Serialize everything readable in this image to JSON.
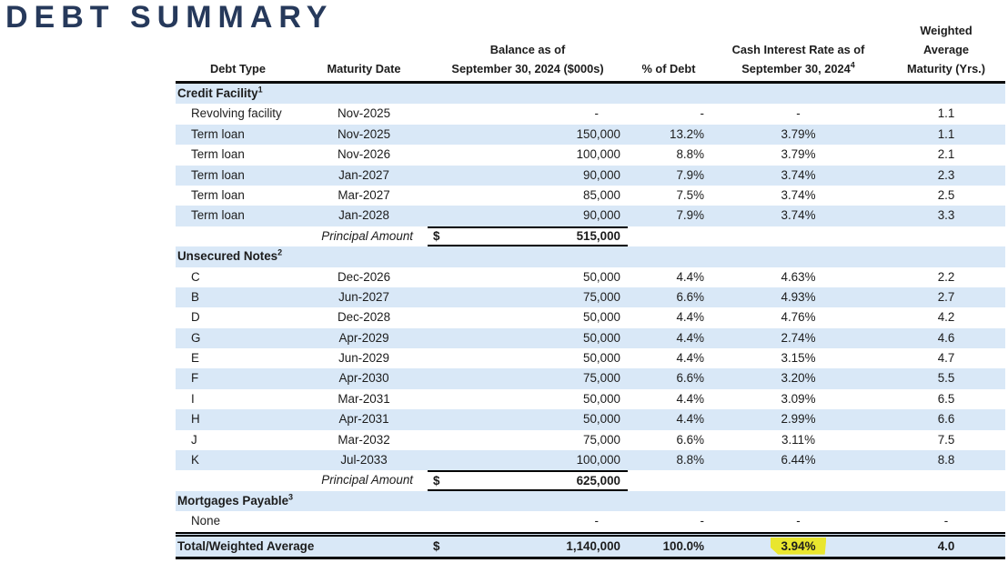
{
  "title": "DEBT SUMMARY",
  "colors": {
    "title_navy": "#26395b",
    "row_band_blue": "#d9e8f7",
    "highlight_yellow": "#e9e62e",
    "border_black": "#0c0c0c"
  },
  "table": {
    "columns": {
      "debt_type": "Debt Type",
      "maturity_date": "Maturity Date",
      "balance_line1": "Balance as of",
      "balance_line2": "September 30, 2024 ($000s)",
      "pct_of_debt": "% of Debt",
      "rate_line1": "Cash Interest Rate as of",
      "rate_line2": "September 30, 2024",
      "rate_sup": "4",
      "wam_line1": "Weighted",
      "wam_line2": "Average",
      "wam_line3": "Maturity (Yrs.)"
    },
    "rows": [
      {
        "type": "section",
        "label": "Credit Facility",
        "sup": "1"
      },
      {
        "type": "data",
        "label": "Revolving facility",
        "maturity": "Nov-2025",
        "balance": "-",
        "pct": "-",
        "rate": "-",
        "wam": "1.1"
      },
      {
        "type": "data",
        "label": "Term loan",
        "maturity": "Nov-2025",
        "balance": "150,000",
        "pct": "13.2%",
        "rate": "3.79%",
        "wam": "1.1"
      },
      {
        "type": "data",
        "label": "Term loan",
        "maturity": "Nov-2026",
        "balance": "100,000",
        "pct": "8.8%",
        "rate": "3.79%",
        "wam": "2.1"
      },
      {
        "type": "data",
        "label": "Term loan",
        "maturity": "Jan-2027",
        "balance": "90,000",
        "pct": "7.9%",
        "rate": "3.74%",
        "wam": "2.3"
      },
      {
        "type": "data",
        "label": "Term loan",
        "maturity": "Mar-2027",
        "balance": "85,000",
        "pct": "7.5%",
        "rate": "3.74%",
        "wam": "2.5"
      },
      {
        "type": "data",
        "label": "Term loan",
        "maturity": "Jan-2028",
        "balance": "90,000",
        "pct": "7.9%",
        "rate": "3.74%",
        "wam": "3.3"
      },
      {
        "type": "subtotal",
        "label": "Principal Amount",
        "currency": "$",
        "balance": "515,000"
      },
      {
        "type": "section",
        "label": "Unsecured Notes",
        "sup": "2"
      },
      {
        "type": "data",
        "label": "C",
        "maturity": "Dec-2026",
        "balance": "50,000",
        "pct": "4.4%",
        "rate": "4.63%",
        "wam": "2.2"
      },
      {
        "type": "data",
        "label": "B",
        "maturity": "Jun-2027",
        "balance": "75,000",
        "pct": "6.6%",
        "rate": "4.93%",
        "wam": "2.7"
      },
      {
        "type": "data",
        "label": "D",
        "maturity": "Dec-2028",
        "balance": "50,000",
        "pct": "4.4%",
        "rate": "4.76%",
        "wam": "4.2"
      },
      {
        "type": "data",
        "label": "G",
        "maturity": "Apr-2029",
        "balance": "50,000",
        "pct": "4.4%",
        "rate": "2.74%",
        "wam": "4.6"
      },
      {
        "type": "data",
        "label": "E",
        "maturity": "Jun-2029",
        "balance": "50,000",
        "pct": "4.4%",
        "rate": "3.15%",
        "wam": "4.7"
      },
      {
        "type": "data",
        "label": "F",
        "maturity": "Apr-2030",
        "balance": "75,000",
        "pct": "6.6%",
        "rate": "3.20%",
        "wam": "5.5"
      },
      {
        "type": "data",
        "label": "I",
        "maturity": "Mar-2031",
        "balance": "50,000",
        "pct": "4.4%",
        "rate": "3.09%",
        "wam": "6.5"
      },
      {
        "type": "data",
        "label": "H",
        "maturity": "Apr-2031",
        "balance": "50,000",
        "pct": "4.4%",
        "rate": "2.99%",
        "wam": "6.6"
      },
      {
        "type": "data",
        "label": "J",
        "maturity": "Mar-2032",
        "balance": "75,000",
        "pct": "6.6%",
        "rate": "3.11%",
        "wam": "7.5"
      },
      {
        "type": "data",
        "label": "K",
        "maturity": "Jul-2033",
        "balance": "100,000",
        "pct": "8.8%",
        "rate": "6.44%",
        "wam": "8.8"
      },
      {
        "type": "subtotal",
        "label": "Principal Amount",
        "currency": "$",
        "balance": "625,000"
      },
      {
        "type": "section",
        "label": "Mortgages Payable",
        "sup": "3"
      },
      {
        "type": "data",
        "label": "None",
        "maturity": "",
        "balance": "-",
        "pct": "-",
        "rate": "-",
        "wam": "-"
      },
      {
        "type": "total",
        "label": "Total/Weighted Average",
        "currency": "$",
        "balance": "1,140,000",
        "pct": "100.0%",
        "rate": "3.94%",
        "wam": "4.0",
        "rate_highlighted": true
      }
    ]
  }
}
